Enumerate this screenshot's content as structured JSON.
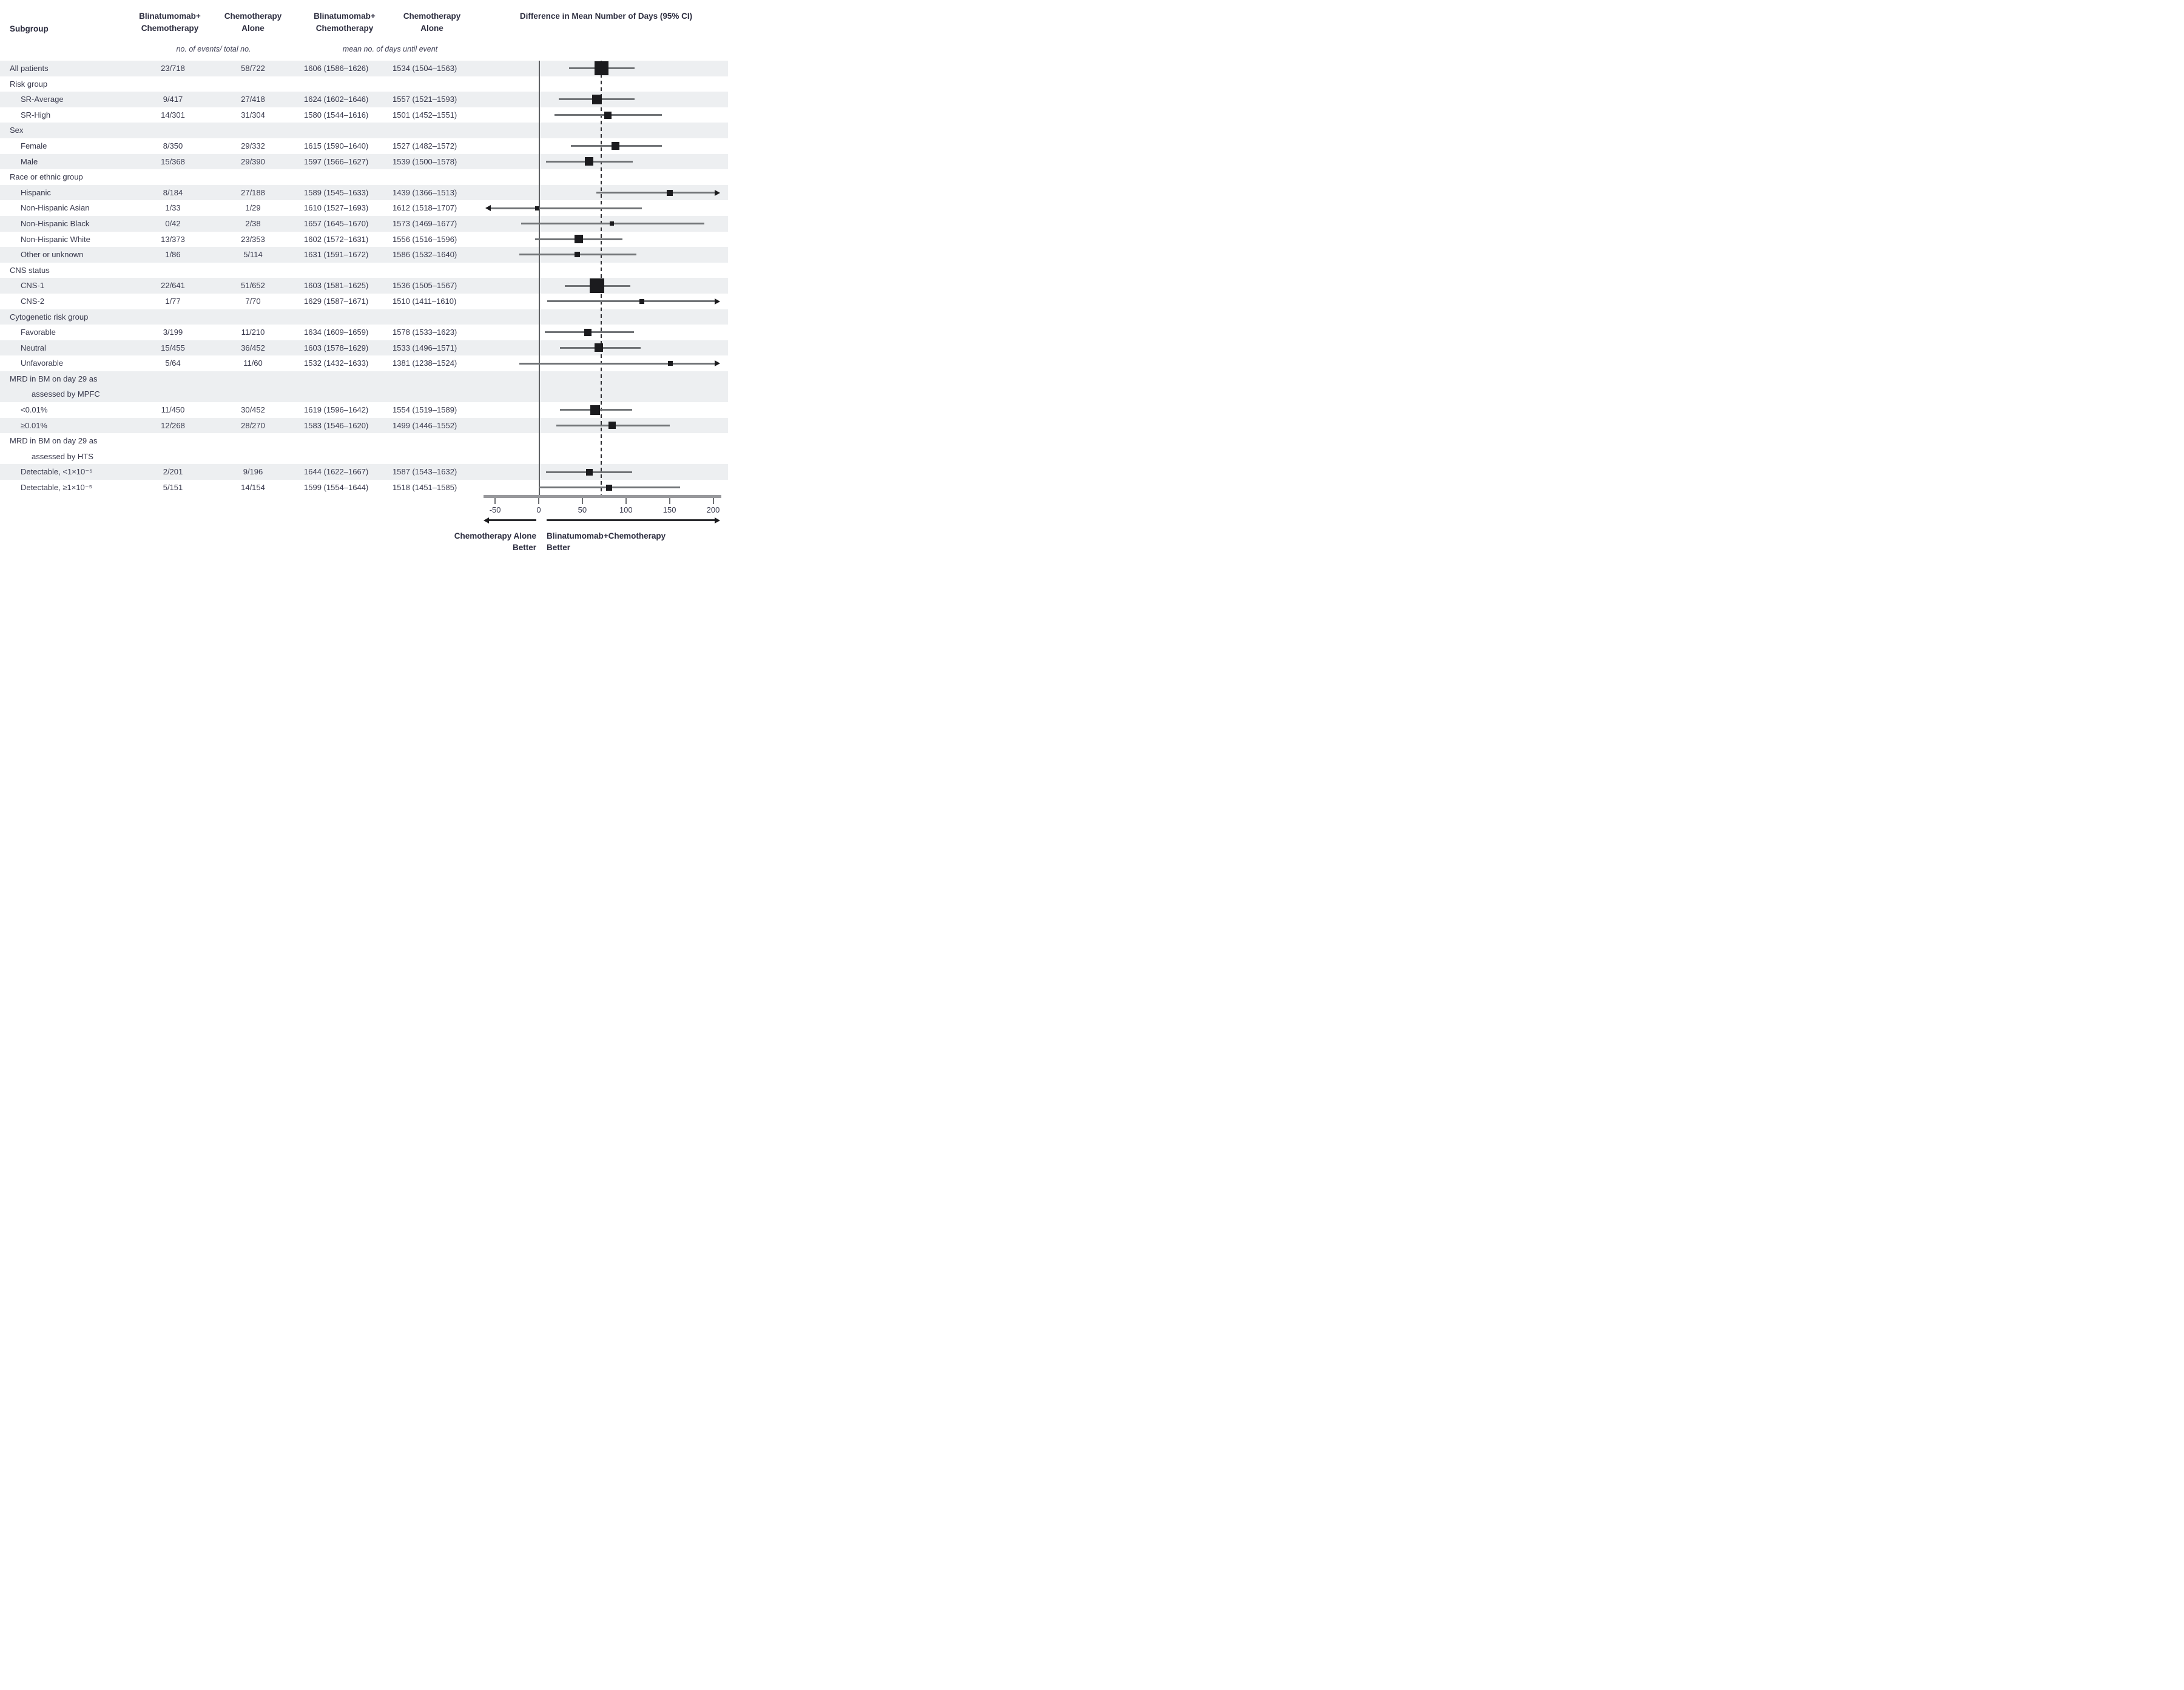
{
  "chart_data": {
    "type": "forest",
    "columns": {
      "subgroup": "Subgroup",
      "events_group1": "Blinatumomab+ Chemotherapy",
      "events_group2": "Chemotherapy Alone",
      "means_group1": "Blinatumomab+ Chemotherapy",
      "means_group2": "Chemotherapy Alone",
      "diff": "Difference in Mean Number of Days (95% CI)",
      "events_subheader": "no. of events/ total no.",
      "means_subheader": "mean no. of days until event"
    },
    "axis": {
      "ticks": [
        -50,
        0,
        50,
        100,
        150,
        200
      ],
      "xmin": -57,
      "xmax": 203,
      "zero_line": 0,
      "dashed_line_at": 72
    },
    "direction_labels": {
      "left": "Chemotherapy Alone\nBetter",
      "right": "Blinatumomab+Chemotherapy\nBetter"
    },
    "rows": [
      {
        "label": "All patients",
        "indent": 0,
        "band": true,
        "events_b": "23/718",
        "events_c": "58/722",
        "mean_b": "1606 (1586–1626)",
        "mean_c": "1534 (1504–1563)",
        "est": 72,
        "lo": 35,
        "hi": 110,
        "size": 23
      },
      {
        "label": "Risk group",
        "indent": 0,
        "band": false,
        "group": true
      },
      {
        "label": "SR-Average",
        "indent": 1,
        "band": true,
        "events_b": "9/417",
        "events_c": "27/418",
        "mean_b": "1624 (1602–1646)",
        "mean_c": "1557 (1521–1593)",
        "est": 67,
        "lo": 23,
        "hi": 110,
        "size": 16
      },
      {
        "label": "SR-High",
        "indent": 1,
        "band": false,
        "events_b": "14/301",
        "events_c": "31/304",
        "mean_b": "1580 (1544–1616)",
        "mean_c": "1501 (1452–1551)",
        "est": 79,
        "lo": 18,
        "hi": 141,
        "size": 12
      },
      {
        "label": "Sex",
        "indent": 0,
        "band": true,
        "group": true
      },
      {
        "label": "Female",
        "indent": 1,
        "band": false,
        "events_b": "8/350",
        "events_c": "29/332",
        "mean_b": "1615 (1590–1640)",
        "mean_c": "1527 (1482–1572)",
        "est": 88,
        "lo": 37,
        "hi": 141,
        "size": 13
      },
      {
        "label": "Male",
        "indent": 1,
        "band": true,
        "events_b": "15/368",
        "events_c": "29/390",
        "mean_b": "1597 (1566–1627)",
        "mean_c": "1539 (1500–1578)",
        "est": 58,
        "lo": 8,
        "hi": 108,
        "size": 14
      },
      {
        "label": "Race or ethnic group",
        "indent": 0,
        "band": false,
        "group": true
      },
      {
        "label": "Hispanic",
        "indent": 1,
        "band": true,
        "events_b": "8/184",
        "events_c": "27/188",
        "mean_b": "1589 (1545–1633)",
        "mean_c": "1439 (1366–1513)",
        "est": 150,
        "lo": 66,
        "hi": 202,
        "arrow_right": true,
        "size": 10
      },
      {
        "label": "Non-Hispanic Asian",
        "indent": 1,
        "band": false,
        "events_b": "1/33",
        "events_c": "1/29",
        "mean_b": "1610 (1527–1693)",
        "mean_c": "1612 (1518–1707)",
        "est": -2,
        "lo": -55,
        "hi": 118,
        "arrow_left": true,
        "size": 7
      },
      {
        "label": "Non-Hispanic Black",
        "indent": 1,
        "band": true,
        "events_b": "0/42",
        "events_c": "2/38",
        "mean_b": "1657 (1645–1670)",
        "mean_c": "1573 (1469–1677)",
        "est": 84,
        "lo": -20,
        "hi": 190,
        "size": 7
      },
      {
        "label": "Non-Hispanic White",
        "indent": 1,
        "band": false,
        "events_b": "13/373",
        "events_c": "23/353",
        "mean_b": "1602 (1572–1631)",
        "mean_c": "1556 (1516–1596)",
        "est": 46,
        "lo": -4,
        "hi": 96,
        "size": 14
      },
      {
        "label": "Other or unknown",
        "indent": 1,
        "band": true,
        "events_b": "1/86",
        "events_c": "5/114",
        "mean_b": "1631 (1591–1672)",
        "mean_c": "1586 (1532–1640)",
        "est": 44,
        "lo": -22,
        "hi": 112,
        "size": 9
      },
      {
        "label": "CNS status",
        "indent": 0,
        "band": false,
        "group": true
      },
      {
        "label": "CNS-1",
        "indent": 1,
        "band": true,
        "events_b": "22/641",
        "events_c": "51/652",
        "mean_b": "1603 (1581–1625)",
        "mean_c": "1536 (1505–1567)",
        "est": 67,
        "lo": 30,
        "hi": 105,
        "size": 24
      },
      {
        "label": "CNS-2",
        "indent": 1,
        "band": false,
        "events_b": "1/77",
        "events_c": "7/70",
        "mean_b": "1629 (1587–1671)",
        "mean_c": "1510 (1411–1610)",
        "est": 118,
        "lo": 10,
        "hi": 202,
        "arrow_right": true,
        "size": 8
      },
      {
        "label": "Cytogenetic risk group",
        "indent": 0,
        "band": true,
        "group": true
      },
      {
        "label": "Favorable",
        "indent": 1,
        "band": false,
        "events_b": "3/199",
        "events_c": "11/210",
        "mean_b": "1634 (1609–1659)",
        "mean_c": "1578 (1533–1623)",
        "est": 56,
        "lo": 7,
        "hi": 109,
        "size": 12
      },
      {
        "label": "Neutral",
        "indent": 1,
        "band": true,
        "events_b": "15/455",
        "events_c": "36/452",
        "mean_b": "1603 (1578–1629)",
        "mean_c": "1533 (1496–1571)",
        "est": 69,
        "lo": 24,
        "hi": 117,
        "size": 14
      },
      {
        "label": "Unfavorable",
        "indent": 1,
        "band": false,
        "events_b": "5/64",
        "events_c": "11/60",
        "mean_b": "1532 (1432–1633)",
        "mean_c": "1381 (1238–1524)",
        "est": 151,
        "lo": -22,
        "hi": 202,
        "arrow_right": true,
        "size": 8
      },
      {
        "label": "MRD in BM on day 29 as",
        "label2": "assessed by MPFC",
        "indent": 0,
        "band": true,
        "group": true,
        "tall": true
      },
      {
        "label": "<0.01%",
        "indent": 1,
        "band": false,
        "events_b": "11/450",
        "events_c": "30/452",
        "mean_b": "1619 (1596–1642)",
        "mean_c": "1554 (1519–1589)",
        "est": 65,
        "lo": 24,
        "hi": 107,
        "size": 16
      },
      {
        "label": "≥0.01%",
        "indent": 1,
        "band": true,
        "events_b": "12/268",
        "events_c": "28/270",
        "mean_b": "1583 (1546–1620)",
        "mean_c": "1499 (1446–1552)",
        "est": 84,
        "lo": 20,
        "hi": 150,
        "size": 12
      },
      {
        "label": "MRD in BM on day 29 as",
        "label2": "assessed by HTS",
        "indent": 0,
        "band": false,
        "group": true,
        "tall": true
      },
      {
        "label": "Detectable, <1×10⁻⁵",
        "indent": 1,
        "band": true,
        "events_b": "2/201",
        "events_c": "9/196",
        "mean_b": "1644 (1622–1667)",
        "mean_c": "1587 (1543–1632)",
        "est": 58,
        "lo": 8,
        "hi": 107,
        "size": 11
      },
      {
        "label": "Detectable, ≥1×10⁻⁵",
        "indent": 1,
        "band": false,
        "events_b": "5/151",
        "events_c": "14/154",
        "mean_b": "1599 (1554–1644)",
        "mean_c": "1518 (1451–1585)",
        "est": 81,
        "lo": 1,
        "hi": 162,
        "size": 10
      }
    ]
  }
}
